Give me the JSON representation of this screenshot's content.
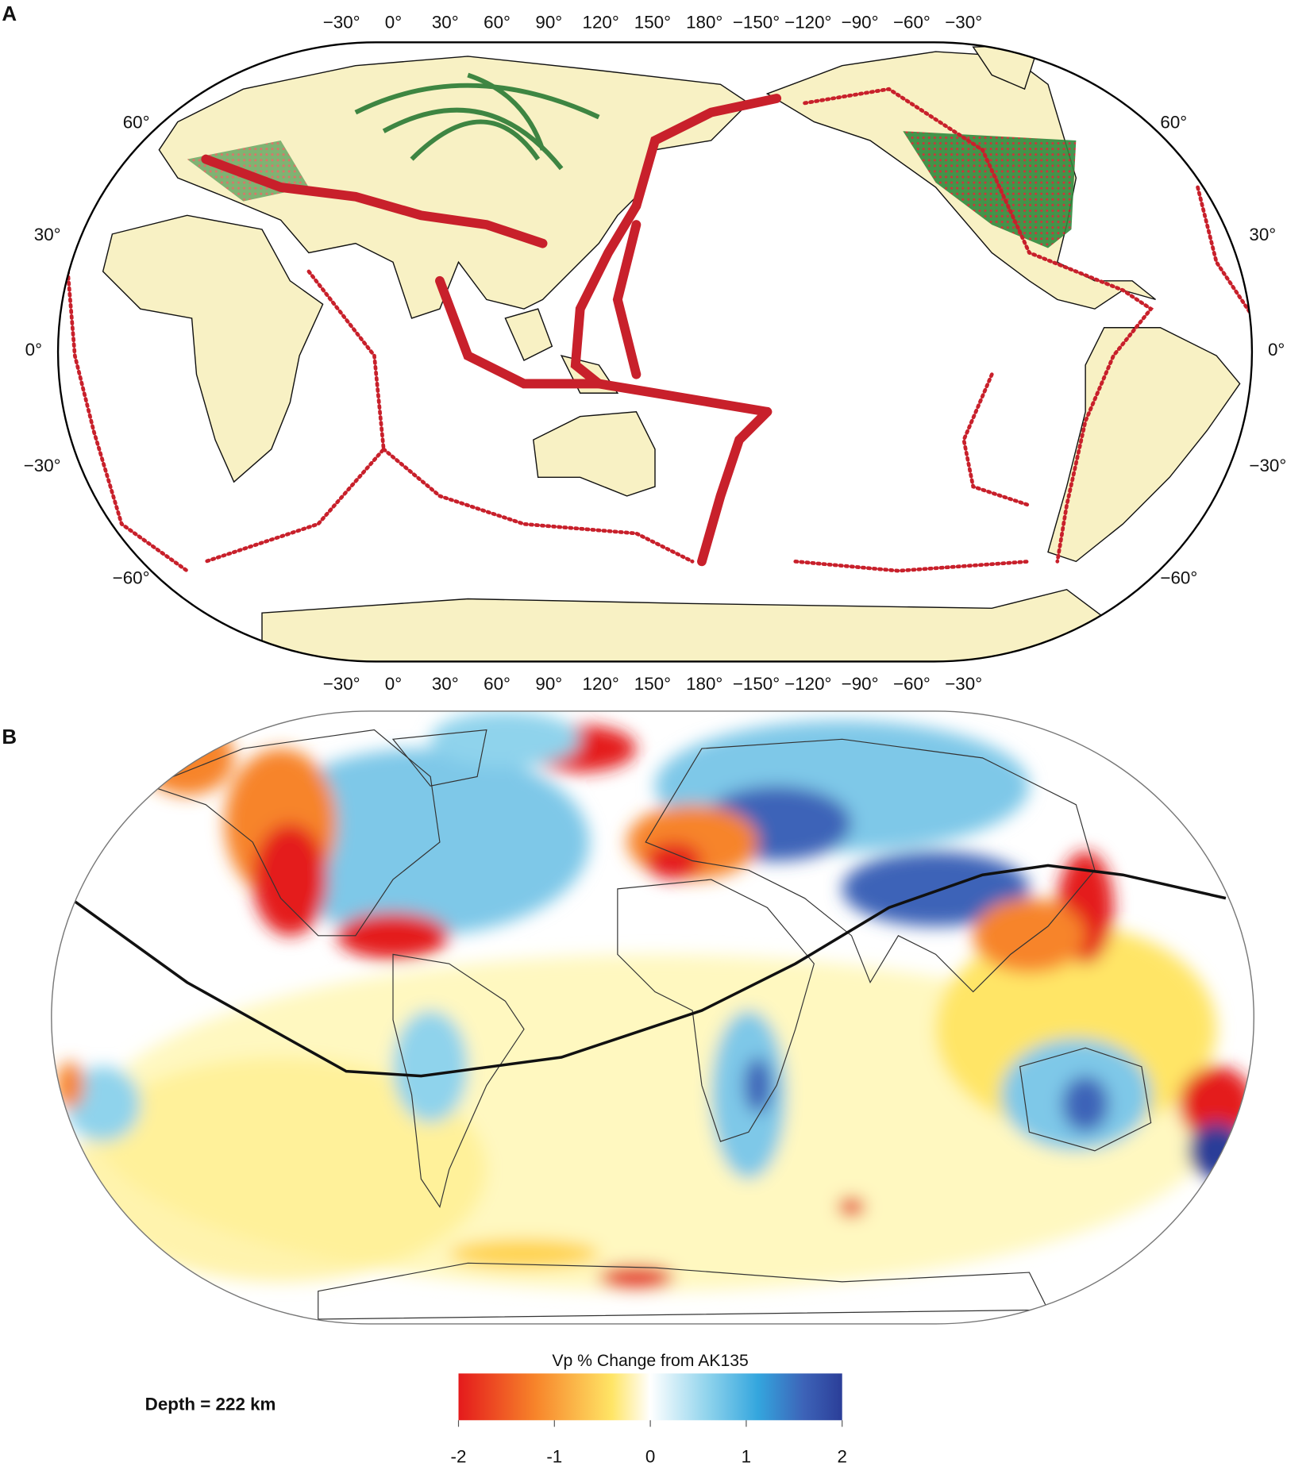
{
  "panels": [
    {
      "label": "A",
      "top_ticks": [
        "−30°",
        "0°",
        "30°",
        "60°",
        "90°",
        "120°",
        "150°",
        "180°",
        "−150°",
        "−120°",
        "−90°",
        "−60°",
        "−30°"
      ],
      "bottom_ticks": [
        "−30°",
        "0°",
        "30°",
        "60°",
        "90°",
        "120°",
        "150°",
        "180°",
        "−150°",
        "−120°",
        "−90°",
        "−60°",
        "−30°"
      ],
      "left_ticks": [
        "60°",
        "30°",
        "0°",
        "−30°",
        "−60°"
      ],
      "right_ticks": [
        "60°",
        "30°",
        "0°",
        "−30°",
        "−60°"
      ]
    },
    {
      "label": "B",
      "depth_label": "Depth = 222 km",
      "colorbar": {
        "title": "Vp % Change from AK135",
        "range": [
          -2,
          2
        ],
        "ticks": [
          -2,
          -1,
          0,
          1,
          2
        ]
      }
    }
  ]
}
